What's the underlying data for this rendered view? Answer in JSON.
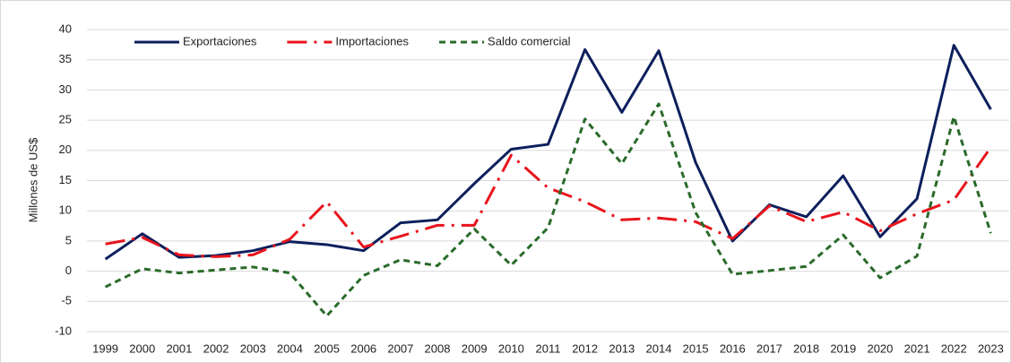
{
  "chart_data": {
    "type": "line",
    "y_axis_label": "Millones de US$",
    "categories": [
      "1999",
      "2000",
      "2001",
      "2002",
      "2003",
      "2004",
      "2005",
      "2006",
      "2007",
      "2008",
      "2009",
      "2010",
      "2011",
      "2012",
      "2013",
      "2014",
      "2015",
      "2016",
      "2017",
      "2018",
      "2019",
      "2020",
      "2021",
      "2022",
      "2023"
    ],
    "series": [
      {
        "name": "Exportaciones",
        "color": "#0d1f5c",
        "dash": "solid",
        "values": [
          2,
          6.2,
          2.3,
          2.6,
          3.4,
          4.9,
          4.4,
          3.4,
          8,
          8.5,
          14.5,
          20.2,
          21,
          36.7,
          26.3,
          36.5,
          18,
          5,
          11,
          9,
          15.8,
          5.7,
          12,
          37.4,
          26.8
        ]
      },
      {
        "name": "Importaciones",
        "color": "#e8141c",
        "dash": "long-dash-dot",
        "values": [
          4.5,
          5.6,
          2.7,
          2.4,
          2.7,
          5.3,
          11.5,
          4,
          5.8,
          7.6,
          7.6,
          19.2,
          13.8,
          11.5,
          8.5,
          8.8,
          8.2,
          5.4,
          10.8,
          8.2,
          9.8,
          6.7,
          9.5,
          11.8,
          20.5
        ]
      },
      {
        "name": "Saldo comercial",
        "color": "#2a6b2a",
        "dash": "short-dash",
        "values": [
          -2.6,
          0.4,
          -0.3,
          0.2,
          0.7,
          -0.3,
          -7.4,
          -0.7,
          1.9,
          0.9,
          7,
          1,
          7.2,
          25.2,
          17.8,
          27.7,
          9.7,
          -0.5,
          0.1,
          0.8,
          6,
          -1.1,
          2.5,
          25.6,
          6.3
        ]
      }
    ],
    "ylim": [
      -10,
      40
    ],
    "yticks": [
      -10,
      -5,
      0,
      5,
      10,
      15,
      20,
      25,
      30,
      35,
      40
    ],
    "grid": true,
    "legend": "top-left"
  }
}
